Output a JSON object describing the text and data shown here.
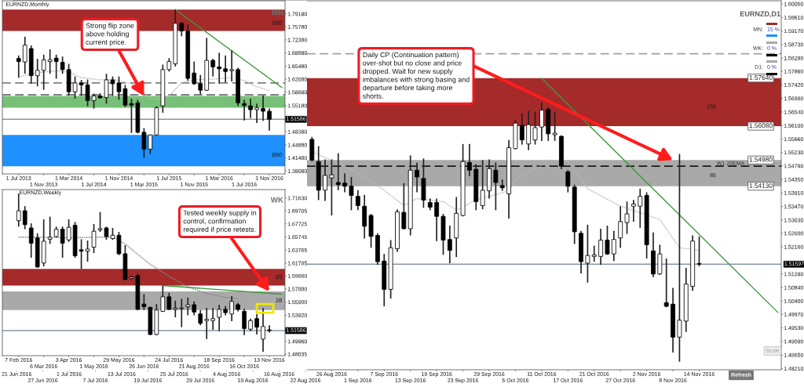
{
  "chart_data": [
    {
      "type": "candlestick",
      "title": "EURNZD,Monthly",
      "categories": [
        "1 Jul 2013",
        null,
        null,
        null,
        "1 Nov 2013",
        null,
        null,
        null,
        "1 Mar 2014",
        null,
        null,
        null,
        "1 Jul 2014",
        null,
        null,
        null,
        "1 Nov 2014",
        null,
        null,
        null,
        "1 Mar 2015",
        null,
        null,
        null,
        "1 Jul 2015",
        null,
        null,
        null,
        "1 Nov 2015",
        null,
        null,
        null,
        "1 Mar 2016",
        null,
        null,
        null,
        "1 Jul 2016",
        null,
        null,
        null,
        "1 Nov 2016",
        null,
        null
      ],
      "ohlc": [
        [
          1.675,
          1.683,
          1.625,
          1.667
        ],
        [
          1.666,
          1.732,
          1.635,
          1.71
        ],
        [
          1.701,
          1.709,
          1.609,
          1.63
        ],
        [
          1.63,
          1.674,
          1.602,
          1.644
        ],
        [
          1.644,
          1.685,
          1.593,
          1.671
        ],
        [
          1.667,
          1.699,
          1.635,
          1.672
        ],
        [
          1.676,
          1.685,
          1.622,
          1.667
        ],
        [
          1.665,
          1.68,
          1.635,
          1.646
        ],
        [
          1.646,
          1.661,
          1.578,
          1.588
        ],
        [
          1.588,
          1.628,
          1.57,
          1.611
        ],
        [
          1.611,
          1.619,
          1.577,
          1.606
        ],
        [
          1.606,
          1.62,
          1.55,
          1.565
        ],
        [
          1.565,
          1.583,
          1.544,
          1.577
        ],
        [
          1.577,
          1.584,
          1.57,
          1.572
        ],
        [
          1.573,
          1.635,
          1.557,
          1.619
        ],
        [
          1.619,
          1.628,
          1.577,
          1.609
        ],
        [
          1.611,
          1.628,
          1.567,
          1.588
        ],
        [
          1.596,
          1.606,
          1.548,
          1.553
        ],
        [
          1.557,
          1.57,
          1.48,
          1.553
        ],
        [
          1.559,
          1.567,
          1.479,
          1.482
        ],
        [
          1.482,
          1.493,
          1.415,
          1.438
        ],
        [
          1.438,
          1.476,
          1.425,
          1.475
        ],
        [
          1.475,
          1.55,
          1.473,
          1.546
        ],
        [
          1.551,
          1.659,
          1.533,
          1.646
        ],
        [
          1.646,
          1.676,
          1.641,
          1.667
        ],
        [
          1.661,
          1.803,
          1.654,
          1.767
        ],
        [
          1.767,
          1.771,
          1.733,
          1.747
        ],
        [
          1.747,
          1.764,
          1.617,
          1.623
        ],
        [
          1.637,
          1.667,
          1.606,
          1.609
        ],
        [
          1.609,
          1.632,
          1.581,
          1.592
        ],
        [
          1.592,
          1.729,
          1.59,
          1.67
        ],
        [
          1.67,
          1.674,
          1.628,
          1.653
        ],
        [
          1.653,
          1.69,
          1.609,
          1.648
        ],
        [
          1.648,
          1.683,
          1.612,
          1.641
        ],
        [
          1.643,
          1.696,
          1.615,
          1.646
        ],
        [
          1.646,
          1.651,
          1.551,
          1.559
        ],
        [
          1.557,
          1.567,
          1.513,
          1.552
        ],
        [
          1.551,
          1.57,
          1.519,
          1.541
        ],
        [
          1.541,
          1.557,
          1.506,
          1.546
        ],
        [
          1.544,
          1.578,
          1.512,
          1.537
        ],
        [
          1.537,
          1.544,
          1.486,
          1.516
        ],
        null,
        null
      ],
      "ylim": [
        1.373,
        1.826
      ],
      "yticks": [
        {
          "value": 1.7918,
          "label": "1.79180"
        },
        {
          "value": 1.7578,
          "label": "1.75780"
        },
        {
          "value": 1.7238,
          "label": "1.72380"
        },
        {
          "value": 1.6898,
          "label": "1.68980"
        },
        {
          "value": 1.6548,
          "label": "1.65480"
        },
        {
          "value": 1.6208,
          "label": "1.62080"
        },
        {
          "value": 1.5868,
          "label": "1.58680"
        },
        {
          "value": 1.5518,
          "label": "1.55180"
        },
        {
          "value": 1.4838,
          "label": "1.48380"
        },
        {
          "value": 1.4488,
          "label": "1.44880"
        },
        {
          "value": 1.4148,
          "label": "1.41480"
        },
        {
          "value": 1.3808,
          "label": "1.38080"
        }
      ],
      "series": [
        {
          "type": "line",
          "color": "#b8b8b8",
          "line_style": "dotted",
          "values": [
            1.627,
            null,
            null,
            1.638,
            null,
            null,
            1.643,
            null,
            1.639,
            null,
            1.625,
            null,
            null,
            1.619,
            null,
            1.621,
            null,
            null,
            1.609,
            null,
            null,
            1.572,
            1.567,
            null,
            1.577,
            null,
            1.612,
            null,
            1.619,
            null,
            null,
            1.621,
            null,
            null,
            1.625,
            null,
            1.617,
            null,
            1.601,
            null,
            1.591,
            null,
            null
          ]
        },
        {
          "type": "line",
          "color": "#3a9a3a",
          "values": [
            null,
            null,
            null,
            null,
            null,
            null,
            null,
            null,
            null,
            null,
            null,
            null,
            null,
            null,
            null,
            null,
            null,
            null,
            null,
            null,
            null,
            null,
            null,
            null,
            null,
            1.803,
            null,
            null,
            null,
            null,
            null,
            null,
            null,
            null,
            null,
            null,
            null,
            null,
            null,
            null,
            null,
            null,
            1.599
          ]
        }
      ],
      "bands": [
        {
          "axis": "y",
          "from": 1.747,
          "to": 1.803,
          "label": "560",
          "color": "#a52a2a"
        },
        {
          "axis": "y",
          "from": 1.546,
          "to": 1.577,
          "color": "#77c077"
        },
        {
          "axis": "y",
          "from": 1.393,
          "to": 1.475,
          "label": "850",
          "color": "#1e90ff"
        }
      ],
      "ref_lines": [
        {
          "axis": "y",
          "value": 1.51586,
          "label": "1.51586",
          "color": "#8796a5"
        },
        {
          "axis": "y",
          "value": 1.611,
          "color": "#808080",
          "line_style": "dashed"
        },
        {
          "axis": "y",
          "value": 1.58,
          "color": "#808080",
          "line_style": "dashed"
        }
      ],
      "annotations": [
        "MN",
        {
          "text": "Strong flip zone\nabove holding\ncurrent price.",
          "x": "1 Mar 2015",
          "y": 1.577
        }
      ]
    },
    {
      "type": "candlestick",
      "title": "EURNZD,Weekly",
      "categories": [
        "7 Feb 2016",
        null,
        null,
        null,
        "6 Mar 2016",
        null,
        null,
        null,
        "3 Apr 2016",
        null,
        null,
        null,
        "1 May 2016",
        null,
        null,
        null,
        "29 May 2016",
        null,
        null,
        null,
        "26 Jun 2016",
        null,
        null,
        null,
        "24 Jul 2016",
        null,
        null,
        null,
        "21 Aug 2016",
        null,
        null,
        null,
        "18 Sep 2016",
        null,
        null,
        null,
        "16 Oct 2016",
        null,
        null,
        null,
        "13 Nov 2016",
        null,
        null
      ],
      "ohlc": [
        [
          1.682,
          1.723,
          1.673,
          1.697
        ],
        [
          1.697,
          1.704,
          1.669,
          1.676
        ],
        [
          1.671,
          1.678,
          1.626,
          1.648
        ],
        [
          1.656,
          1.663,
          1.611,
          1.612
        ],
        [
          1.618,
          1.684,
          1.613,
          1.651
        ],
        [
          1.654,
          1.688,
          1.647,
          1.657
        ],
        [
          1.658,
          1.673,
          1.657,
          1.669
        ],
        [
          1.669,
          1.673,
          1.626,
          1.648
        ],
        [
          1.653,
          1.684,
          1.65,
          1.672
        ],
        [
          1.675,
          1.68,
          1.626,
          1.629
        ],
        [
          1.638,
          1.654,
          1.609,
          1.636
        ],
        [
          1.636,
          1.652,
          1.62,
          1.639
        ],
        [
          1.642,
          1.677,
          1.633,
          1.666
        ],
        [
          1.668,
          1.695,
          1.665,
          1.67
        ],
        [
          1.671,
          1.673,
          1.653,
          1.658
        ],
        [
          1.655,
          1.671,
          1.653,
          1.66
        ],
        [
          1.66,
          1.665,
          1.63,
          1.632
        ],
        [
          1.632,
          1.645,
          1.592,
          1.593
        ],
        [
          1.595,
          1.599,
          1.592,
          1.597
        ],
        [
          1.599,
          1.603,
          1.547,
          1.548
        ],
        [
          1.556,
          1.571,
          1.547,
          1.552
        ],
        [
          1.551,
          1.552,
          1.509,
          1.51
        ],
        [
          1.51,
          1.556,
          1.509,
          1.547
        ],
        [
          1.545,
          1.584,
          1.544,
          1.567
        ],
        [
          1.567,
          1.573,
          1.547,
          1.548
        ],
        [
          1.548,
          1.561,
          1.536,
          1.55
        ],
        [
          1.549,
          1.564,
          1.521,
          1.55
        ],
        [
          1.552,
          1.566,
          1.539,
          1.555
        ],
        [
          1.555,
          1.56,
          1.539,
          1.544
        ],
        [
          1.541,
          1.547,
          1.524,
          1.527
        ],
        [
          1.531,
          1.55,
          1.503,
          1.533
        ],
        [
          1.531,
          1.55,
          1.517,
          1.534
        ],
        [
          1.536,
          1.555,
          1.515,
          1.548
        ],
        [
          1.548,
          1.553,
          1.539,
          1.543
        ],
        [
          1.541,
          1.568,
          1.53,
          1.56
        ],
        [
          1.555,
          1.558,
          1.545,
          1.548
        ],
        [
          1.545,
          1.549,
          1.509,
          1.519
        ],
        [
          1.518,
          1.534,
          1.515,
          1.531
        ],
        [
          1.534,
          1.541,
          1.51,
          1.521
        ],
        [
          1.503,
          1.55,
          1.484,
          1.522
        ],
        [
          1.517,
          1.524,
          1.513,
          1.516
        ],
        null,
        null
      ],
      "ylim": [
        1.478,
        1.729
      ],
      "yticks": [
        {
          "value": 1.7163,
          "label": "1.71630"
        },
        1.69705,
        1.67725,
        1.65745,
        1.63765,
        1.61785,
        {
          "value": 1.5986,
          "label": "1.59860"
        },
        {
          "value": 1.5788,
          "label": "1.57880"
        },
        {
          "value": 1.559,
          "label": "1.55900"
        },
        {
          "value": 1.5392,
          "label": "1.53920"
        },
        {
          "value": 1.4996,
          "label": "1.49960"
        },
        1.48035
      ],
      "series": [
        {
          "type": "line",
          "color": "#858585",
          "line_style": "dotted",
          "values": [
            1.657,
            null,
            null,
            null,
            1.657,
            null,
            null,
            null,
            1.656,
            null,
            null,
            null,
            1.657,
            null,
            null,
            1.657,
            null,
            1.647,
            null,
            1.631,
            null,
            1.616,
            null,
            null,
            1.598,
            null,
            null,
            1.582,
            null,
            null,
            1.572,
            null,
            null,
            1.566,
            null,
            1.564,
            null,
            null,
            null,
            null,
            null,
            null,
            null
          ]
        },
        {
          "type": "line",
          "color": "#3a9a3a",
          "values": [
            null,
            null,
            null,
            null,
            null,
            null,
            null,
            null,
            null,
            null,
            null,
            null,
            null,
            null,
            null,
            null,
            null,
            null,
            null,
            null,
            null,
            null,
            null,
            1.584,
            null,
            null,
            null,
            null,
            null,
            null,
            null,
            null,
            null,
            null,
            null,
            null,
            null,
            null,
            null,
            null,
            null,
            null,
            1.571
          ]
        }
      ],
      "bands": [
        {
          "axis": "y",
          "from": 1.584,
          "to": 1.609,
          "label": "25",
          "color": "#a52a2a"
        },
        {
          "axis": "y",
          "from": 1.547,
          "to": 1.575,
          "label": "28",
          "color": "#a9a9a9"
        }
      ],
      "ref_lines": [
        {
          "axis": "y",
          "value": 1.51586,
          "label": "1.51586",
          "color": "#8796a5"
        }
      ],
      "annotations": [
        "WK",
        {
          "text": "Tested weekly supply in\ncontrol, confirmation\nrequired if price retests.",
          "x": "13 Nov 2016",
          "y": 1.575
        }
      ]
    },
    {
      "type": "candlestick",
      "title": "EURNZD,D1",
      "categories": [
        "21 Jun 2016",
        null,
        null,
        null,
        "27 Jun 2016",
        null,
        null,
        null,
        "1 Jul 2016",
        null,
        null,
        null,
        "7 Jul 2016",
        null,
        null,
        null,
        "13 Jul 2016",
        null,
        null,
        null,
        "19 Jul 2016",
        null,
        null,
        null,
        "25 Jul 2016",
        null,
        null,
        null,
        "29 Jul 2016",
        null,
        null,
        null,
        "4 Aug 2016",
        null,
        null,
        null,
        "10 Aug 2016",
        null,
        null,
        null,
        "16 Aug 2016",
        null,
        null,
        null,
        "22 Aug 2016",
        null,
        null,
        null,
        "26 Aug 2016",
        null,
        null,
        null,
        "1 Sep 2016",
        null,
        null,
        null,
        "7 Sep 2016",
        null,
        null,
        null,
        "13 Sep 2016",
        null,
        null,
        null,
        "19 Sep 2016",
        null,
        null,
        null,
        "23 Sep 2016",
        null,
        null,
        null,
        "29 Sep 2016",
        null,
        null,
        null,
        "5 Oct 2016",
        null,
        null,
        null,
        "11 Oct 2016",
        null,
        null,
        null,
        "17 Oct 2016",
        null,
        null,
        null,
        "21 Oct 2016",
        null,
        null,
        null,
        "27 Oct 2016",
        null,
        null,
        null,
        "2 Nov 2016",
        null,
        null,
        null,
        "8 Nov 2016",
        null,
        null,
        null,
        "14 Nov 2016",
        null,
        null,
        null,
        null,
        null,
        null,
        null,
        null,
        null,
        null,
        null,
        null
      ],
      "ohlc": [
        null,
        null,
        null,
        null,
        null,
        null,
        null,
        null,
        null,
        null,
        null,
        null,
        null,
        null,
        null,
        null,
        null,
        null,
        null,
        null,
        null,
        null,
        null,
        null,
        null,
        null,
        null,
        null,
        null,
        null,
        null,
        null,
        null,
        null,
        null,
        null,
        null,
        null,
        null,
        null,
        null,
        null,
        null,
        null,
        null,
        [
          1.5565,
          1.5573,
          1.5493,
          1.5498
        ],
        [
          1.5493,
          1.5543,
          1.5368,
          1.54
        ],
        [
          1.54,
          1.55,
          1.5365,
          1.5448
        ],
        [
          1.544,
          1.55,
          1.5318,
          1.545
        ],
        [
          1.5425,
          1.552,
          1.54,
          1.5418
        ],
        [
          1.5423,
          1.5455,
          1.5393,
          1.5413
        ],
        [
          1.5413,
          1.5443,
          1.5335,
          1.5383
        ],
        [
          1.538,
          1.54,
          1.5335,
          1.535
        ],
        [
          1.5348,
          1.5385,
          1.5243,
          1.5283
        ],
        [
          1.5318,
          1.5323,
          1.5213,
          1.525
        ],
        [
          1.5253,
          1.526,
          1.5158,
          1.5168
        ],
        [
          1.517,
          1.5193,
          1.5023,
          1.5078
        ],
        [
          1.5078,
          1.5238,
          1.5048,
          1.5213
        ],
        [
          1.521,
          1.5338,
          1.52,
          1.533
        ],
        [
          1.5328,
          1.5423,
          1.5273,
          1.5275
        ],
        [
          1.5275,
          1.5513,
          1.5253,
          1.5465
        ],
        [
          1.5465,
          1.549,
          1.5393,
          1.5443
        ],
        [
          1.5438,
          1.5503,
          1.5343,
          1.5368
        ],
        [
          1.536,
          1.5373,
          1.5335,
          1.5345
        ],
        [
          1.536,
          1.5373,
          1.5235,
          1.5315
        ],
        [
          1.5315,
          1.5323,
          1.519,
          1.5238
        ],
        [
          1.524,
          1.5285,
          1.5163,
          1.5205
        ],
        [
          1.5245,
          1.5378,
          1.5183,
          1.5325
        ],
        [
          1.5318,
          1.555,
          1.5315,
          1.5493
        ],
        [
          1.549,
          1.555,
          1.5445,
          1.5465
        ],
        [
          1.5468,
          1.5485,
          1.5335,
          1.5363
        ],
        [
          1.535,
          1.5498,
          1.5338,
          1.54
        ],
        [
          1.5398,
          1.55,
          1.5373,
          1.547
        ],
        [
          1.5465,
          1.549,
          1.5335,
          1.5425
        ],
        [
          1.5415,
          1.5435,
          1.5398,
          1.5408
        ],
        [
          1.5388,
          1.5563,
          1.5308,
          1.5538
        ],
        [
          1.5535,
          1.5628,
          1.5533,
          1.5618
        ],
        [
          1.561,
          1.565,
          1.5548,
          1.5563
        ],
        [
          1.555,
          1.5658,
          1.553,
          1.5613
        ],
        [
          1.5563,
          1.5655,
          1.5548,
          1.5603
        ],
        [
          1.5605,
          1.5685,
          1.556,
          1.566
        ],
        [
          1.5663,
          1.5668,
          1.556,
          1.5583
        ],
        [
          1.558,
          1.5655,
          1.556,
          1.5585
        ],
        [
          1.5575,
          1.5578,
          1.5468,
          1.5478
        ],
        [
          1.546,
          1.5465,
          1.5393,
          1.5413
        ],
        [
          1.541,
          1.5418,
          1.5225,
          1.5265
        ],
        [
          1.526,
          1.5268,
          1.513,
          1.5168
        ],
        [
          1.5163,
          1.5288,
          1.51,
          1.5188
        ],
        [
          1.5185,
          1.522,
          1.5168,
          1.519
        ],
        [
          1.5185,
          1.5275,
          1.5158,
          1.5238
        ],
        [
          1.5238,
          1.5285,
          1.519,
          1.5193
        ],
        [
          1.5193,
          1.5268,
          1.517,
          1.524
        ],
        [
          1.5245,
          1.5348,
          1.5213,
          1.5298
        ],
        [
          1.5295,
          1.5363,
          1.5258,
          1.5323
        ],
        [
          1.5348,
          1.5368,
          1.5298,
          1.5355
        ],
        [
          1.5348,
          1.5405,
          1.5278,
          1.538
        ],
        [
          1.5383,
          1.5393,
          1.5178,
          1.5223
        ],
        [
          1.5203,
          1.5263,
          1.5118,
          1.5128
        ],
        [
          1.5128,
          1.5223,
          1.5125,
          1.5193
        ],
        [
          1.5035,
          1.5178,
          1.502,
          1.5023
        ],
        [
          1.503,
          1.5083,
          1.4873,
          1.4923
        ],
        [
          1.4923,
          1.5518,
          1.4843,
          1.4978
        ],
        [
          1.4975,
          1.5148,
          1.494,
          1.5095
        ],
        [
          1.5088,
          1.5253,
          1.5073,
          1.5235
        ],
        [
          1.5162,
          1.525,
          1.5153,
          1.516
        ],
        null,
        null,
        null,
        null,
        null,
        null,
        null,
        null,
        null,
        null,
        null,
        null
      ],
      "ylim": [
        1.4817,
        1.6015
      ],
      "yticks": [
        {
          "value": 1.6005,
          "label": "1.60050"
        },
        {
          "value": 1.5961,
          "label": "1.59610"
        },
        {
          "value": 1.5917,
          "label": "1.59170"
        },
        {
          "value": 1.5873,
          "label": "1.58730"
        },
        {
          "value": 1.5829,
          "label": "1.58290"
        },
        {
          "value": 1.5786,
          "label": "1.57860"
        },
        {
          "value": 1.5742,
          "label": "1.57420"
        },
        {
          "value": 1.5698,
          "label": "1.56980"
        },
        {
          "value": 1.5654,
          "label": "1.56540"
        },
        {
          "value": 1.561,
          "label": "1.56100"
        },
        {
          "value": 1.5566,
          "label": "1.55660"
        },
        {
          "value": 1.5523,
          "label": "1.55230"
        },
        {
          "value": 1.5479,
          "label": "1.54790"
        },
        {
          "value": 1.5435,
          "label": "1.54350"
        },
        {
          "value": 1.5391,
          "label": "1.53910"
        },
        {
          "value": 1.5347,
          "label": "1.53470"
        },
        {
          "value": 1.5303,
          "label": "1.53030"
        },
        {
          "value": 1.526,
          "label": "1.52600"
        },
        {
          "value": 1.5216,
          "label": "1.52160"
        },
        {
          "value": 1.5128,
          "label": "1.51280"
        },
        {
          "value": 1.5084,
          "label": "1.50840"
        },
        {
          "value": 1.504,
          "label": "1.50400"
        },
        {
          "value": 1.4997,
          "label": "1.49970"
        },
        {
          "value": 1.4953,
          "label": "1.49530"
        },
        {
          "value": 1.4909,
          "label": "1.49090"
        },
        {
          "value": 1.4865,
          "label": "1.48650"
        },
        {
          "value": 1.4821,
          "label": "1.48210"
        }
      ],
      "series": [
        {
          "type": "line",
          "color": "#b8b8b8",
          "line_style": "dotted",
          "values": [
            null,
            null,
            null,
            null,
            null,
            null,
            null,
            null,
            null,
            null,
            null,
            null,
            null,
            null,
            null,
            null,
            null,
            null,
            null,
            null,
            null,
            null,
            null,
            null,
            null,
            null,
            null,
            null,
            null,
            null,
            null,
            null,
            null,
            null,
            null,
            null,
            null,
            null,
            null,
            null,
            null,
            null,
            null,
            null,
            null,
            1.5525,
            null,
            null,
            null,
            null,
            null,
            1.5468,
            null,
            null,
            null,
            null,
            1.54,
            null,
            null,
            1.535,
            null,
            1.5373,
            null,
            null,
            null,
            1.5363,
            null,
            1.5335,
            null,
            null,
            1.5368,
            null,
            null,
            null,
            null,
            1.5398,
            1.5435,
            null,
            null,
            null,
            1.548,
            1.5498,
            null,
            null,
            1.5493,
            null,
            null,
            1.5405,
            null,
            null,
            null,
            null,
            1.5348,
            null,
            null,
            null,
            null,
            null,
            1.5305,
            null,
            null,
            1.5213,
            null,
            null,
            1.5205,
            null,
            null,
            null,
            null,
            null,
            null,
            null,
            null,
            null,
            null,
            null,
            null
          ]
        },
        {
          "type": "line",
          "color": "#3a9a3a",
          "values": [
            null,
            null,
            null,
            null,
            null,
            null,
            null,
            null,
            null,
            null,
            null,
            null,
            null,
            null,
            null,
            null,
            null,
            null,
            null,
            null,
            null,
            null,
            null,
            null,
            null,
            null,
            null,
            null,
            null,
            null,
            null,
            null,
            null,
            null,
            null,
            null,
            null,
            null,
            null,
            null,
            null,
            null,
            null,
            null,
            null,
            null,
            null,
            null,
            null,
            null,
            null,
            null,
            null,
            null,
            null,
            null,
            null,
            null,
            null,
            null,
            null,
            null,
            null,
            null,
            null,
            null,
            null,
            null,
            null,
            null,
            null,
            null,
            null,
            null,
            null,
            null,
            null,
            null,
            null,
            null,
            1.5763,
            null,
            null,
            null,
            null,
            null,
            null,
            null,
            null,
            null,
            null,
            null,
            null,
            null,
            null,
            null,
            null,
            null,
            null,
            null,
            null,
            null,
            null,
            null,
            null,
            null,
            null,
            null,
            null,
            null,
            null,
            null,
            null,
            null,
            null,
            null,
            1.5003
          ]
        }
      ],
      "bands": [
        {
          "axis": "y",
          "from": 1.5608,
          "to": 1.5764,
          "label": "156",
          "color": "#a52a2a"
        },
        {
          "axis": "y",
          "from": 1.5413,
          "to": 1.5498,
          "label": "85",
          "color": "#a9a9a9"
        }
      ],
      "ref_lines": [
        {
          "axis": "y",
          "value": 1.51597,
          "label": "1.51597",
          "color": "#8796a5"
        },
        {
          "axis": "y",
          "value": 1.5843,
          "color": "#a0a0a0",
          "line_style": "dashed"
        },
        {
          "axis": "y",
          "value": 1.5478,
          "label": "W1 20EMA",
          "color": "#1a1a1a",
          "line_style": "dashed"
        }
      ],
      "annotations": [
        "MN:",
        "15 %",
        "WK:",
        "0 %",
        "D1:",
        "0 %",
        "Scale",
        "Refresh",
        {
          "text": "Daily CP (Continuation pattern)\nover-shot but no close and price\ndropped. Wait for new supply\nimbalances with strong basing and\ndeparture before taking more\nshorts.",
          "x": "8 Nov 2016",
          "y": 1.5498
        },
        {
          "text": "1.57640",
          "y": 1.5764
        },
        {
          "text": "1.56080",
          "y": 1.5608
        },
        {
          "text": "1.54980",
          "y": 1.5498
        },
        {
          "text": "1.54130",
          "y": 1.5413
        }
      ]
    }
  ]
}
